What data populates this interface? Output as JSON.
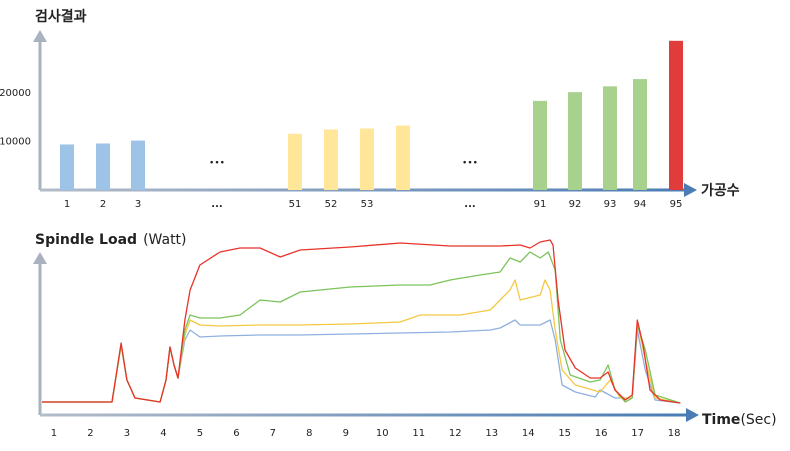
{
  "chart_data": [
    {
      "type": "bar",
      "y_label": "검사결과",
      "x_label": "가공수",
      "categories": [
        "1",
        "2",
        "3",
        "...",
        "51",
        "52",
        "53",
        null,
        "...",
        "91",
        "92",
        "93",
        "94",
        "95"
      ],
      "values": [
        9400,
        9600,
        10200,
        null,
        11600,
        12500,
        12700,
        13300,
        null,
        18400,
        20200,
        21400,
        22900,
        30800
      ],
      "colors": [
        "#9dc3e6",
        "#9dc3e6",
        "#9dc3e6",
        null,
        "#ffe699",
        "#ffe699",
        "#ffe699",
        "#ffe699",
        null,
        "#a9d18e",
        "#a9d18e",
        "#a9d18e",
        "#a9d18e",
        "#e03c3c"
      ],
      "ylim": [
        0,
        32000
      ],
      "yticks": [
        10000,
        20000
      ]
    },
    {
      "type": "line",
      "title": "Spindle Load",
      "title_unit": "(Watt)",
      "x_label": "Time",
      "x_unit": "(Sec)",
      "xlim": [
        0.6,
        18.6
      ],
      "xticks": [
        1,
        2,
        3,
        4,
        5,
        6,
        7,
        8,
        9,
        10,
        11,
        12,
        13,
        14,
        15,
        16,
        17,
        18
      ],
      "ylim": [
        0,
        180
      ],
      "series": [
        {
          "color": "#8fb0e0",
          "x": [
            0.67,
            2.59,
            2.84,
            3.0,
            3.22,
            3.91,
            4.07,
            4.18,
            4.29,
            4.4,
            4.59,
            4.73,
            5.0,
            5.55,
            6.65,
            7.75,
            9.12,
            10.49,
            11.86,
            12.96,
            13.23,
            13.64,
            13.78,
            14.33,
            14.6,
            14.74,
            14.93,
            15.29,
            15.84,
            15.97,
            16.38,
            16.85,
            16.99,
            17.21,
            17.48,
            18.17
          ],
          "values": [
            13,
            13,
            70,
            35,
            17,
            13,
            35,
            68,
            50,
            37,
            75,
            85,
            78,
            79,
            80,
            80,
            81,
            82,
            83,
            85,
            87,
            95,
            90,
            90,
            95,
            75,
            30,
            23,
            18,
            25,
            17,
            17,
            85,
            45,
            15,
            12
          ]
        },
        {
          "color": "#f5c842",
          "x": [
            0.67,
            2.59,
            2.84,
            3.0,
            3.22,
            3.91,
            4.07,
            4.18,
            4.29,
            4.4,
            4.59,
            4.73,
            5.0,
            5.55,
            6.65,
            7.75,
            9.12,
            10.49,
            11.04,
            12.13,
            12.96,
            13.23,
            13.5,
            13.64,
            13.78,
            14.33,
            14.46,
            14.6,
            14.74,
            14.93,
            15.29,
            15.97,
            16.25,
            16.52,
            16.85,
            16.99,
            17.21,
            17.48,
            18.17
          ],
          "values": [
            13,
            13,
            70,
            35,
            17,
            13,
            35,
            68,
            50,
            37,
            80,
            95,
            90,
            89,
            90,
            90,
            91,
            93,
            100,
            100,
            105,
            115,
            125,
            135,
            115,
            120,
            135,
            125,
            85,
            45,
            30,
            23,
            35,
            17,
            17,
            93,
            55,
            17,
            12
          ]
        },
        {
          "color": "#7cc35a",
          "x": [
            0.67,
            2.59,
            2.84,
            3.0,
            3.22,
            3.91,
            4.07,
            4.18,
            4.29,
            4.4,
            4.59,
            4.73,
            5.0,
            5.55,
            6.1,
            6.65,
            7.2,
            7.75,
            9.12,
            10.49,
            11.31,
            11.86,
            12.68,
            13.23,
            13.5,
            13.78,
            14.05,
            14.33,
            14.55,
            14.74,
            14.88,
            15.15,
            15.7,
            15.97,
            16.19,
            16.38,
            16.66,
            16.85,
            16.99,
            17.21,
            17.48,
            18.17
          ],
          "values": [
            13,
            13,
            70,
            35,
            17,
            13,
            35,
            68,
            50,
            37,
            85,
            100,
            97,
            97,
            100,
            115,
            113,
            123,
            128,
            130,
            130,
            135,
            140,
            143,
            157,
            153,
            163,
            157,
            163,
            145,
            75,
            40,
            33,
            35,
            50,
            25,
            13,
            17,
            90,
            65,
            20,
            12
          ]
        },
        {
          "color": "#e8332a",
          "x": [
            0.67,
            2.59,
            2.84,
            3.0,
            3.22,
            3.91,
            4.07,
            4.18,
            4.29,
            4.4,
            4.59,
            4.73,
            5.0,
            5.55,
            6.1,
            6.65,
            7.2,
            7.75,
            9.12,
            10.49,
            11.86,
            13.23,
            13.78,
            14.05,
            14.33,
            14.6,
            14.68,
            14.82,
            15.01,
            15.29,
            15.7,
            15.97,
            16.19,
            16.38,
            16.66,
            16.85,
            16.99,
            17.15,
            17.34,
            17.62,
            18.17
          ],
          "values": [
            13,
            13,
            72,
            35,
            17,
            13,
            35,
            68,
            50,
            37,
            95,
            125,
            150,
            163,
            167,
            167,
            158,
            165,
            168,
            172,
            169,
            169,
            170,
            167,
            173,
            175,
            170,
            115,
            65,
            47,
            37,
            37,
            43,
            25,
            15,
            20,
            95,
            70,
            25,
            15,
            12
          ]
        }
      ]
    }
  ]
}
